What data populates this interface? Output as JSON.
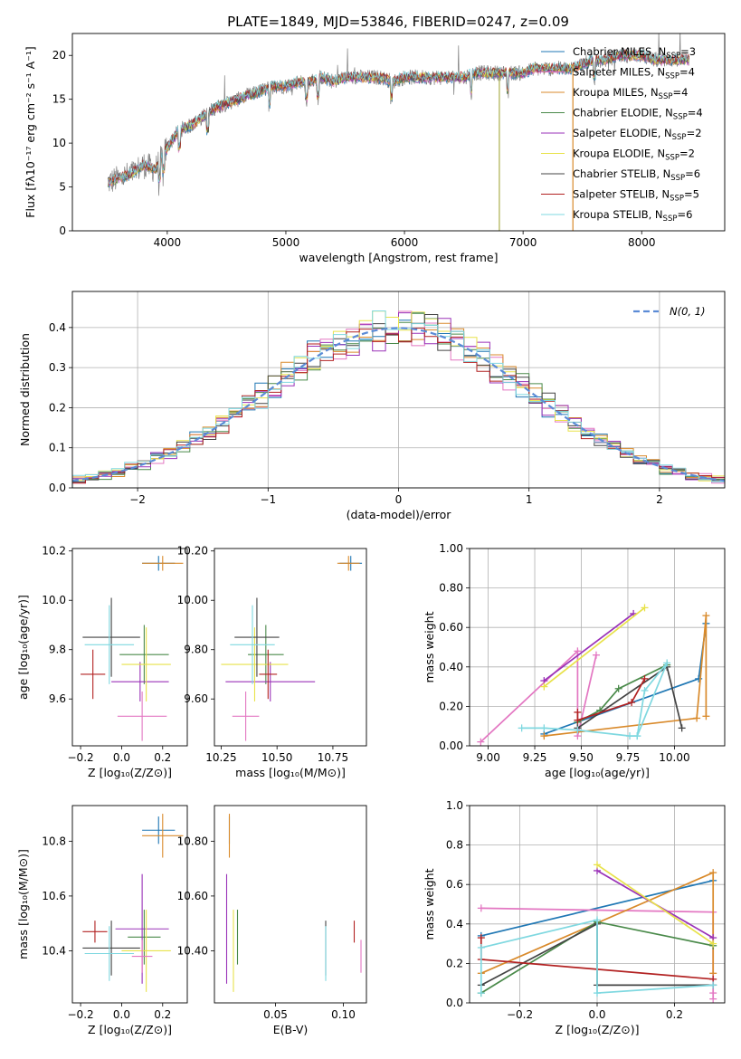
{
  "chart_data": [
    {
      "type": "line",
      "title": "PLATE=1849, MJD=53846, FIBERID=0247, z=0.09",
      "xlabel": "wavelength [Angstrom, rest frame]",
      "ylabel": "Flux [fλ10⁻¹⁷ erg cm⁻² s⁻¹ A⁻¹]",
      "xlim": [
        3200,
        8700
      ],
      "ylim": [
        0,
        22.5
      ],
      "xticks": [
        4000,
        5000,
        6000,
        7000,
        8000
      ],
      "yticks": [
        0,
        5,
        10,
        15,
        20
      ],
      "grid": false,
      "legend_position": "top-right",
      "x": [
        3500,
        3600,
        3700,
        3800,
        3900,
        4000,
        4100,
        4200,
        4300,
        4400,
        4500,
        4600,
        4700,
        4800,
        4900,
        5000,
        5100,
        5200,
        5300,
        5400,
        5500,
        5600,
        5700,
        5800,
        5900,
        6000,
        6100,
        6200,
        6300,
        6400,
        6500,
        6600,
        6700,
        6800,
        6900,
        7000,
        7100,
        7200,
        7300,
        7400,
        7500,
        7600,
        7700,
        7800,
        7900,
        8000,
        8100,
        8200,
        8300,
        8400
      ],
      "series": [
        {
          "name": "Chabrier MILES, N_SSP=3",
          "legend_main": "Chabrier MILES, N",
          "legend_sub": "SSP",
          "legend_tail": "=3",
          "color": "#1f77b4"
        },
        {
          "name": "Salpeter MILES, N_SSP=4",
          "legend_main": "Salpeter MILES, N",
          "legend_sub": "SSP",
          "legend_tail": "=4",
          "color": "#e377c2"
        },
        {
          "name": "Kroupa MILES, N_SSP=4",
          "legend_main": "Kroupa MILES, N",
          "legend_sub": "SSP",
          "legend_tail": "=4",
          "color": "#d98a2b"
        },
        {
          "name": "Chabrier ELODIE, N_SSP=4",
          "legend_main": "Chabrier ELODIE, N",
          "legend_sub": "SSP",
          "legend_tail": "=4",
          "color": "#4a8a4a"
        },
        {
          "name": "Salpeter ELODIE, N_SSP=2",
          "legend_main": "Salpeter ELODIE, N",
          "legend_sub": "SSP",
          "legend_tail": "=2",
          "color": "#9a32b8"
        },
        {
          "name": "Kroupa ELODIE, N_SSP=2",
          "legend_main": "Kroupa ELODIE, N",
          "legend_sub": "SSP",
          "legend_tail": "=2",
          "color": "#e8e24a"
        },
        {
          "name": "Chabrier STELIB, N_SSP=6",
          "legend_main": "Chabrier STELIB, N",
          "legend_sub": "SSP",
          "legend_tail": "=6",
          "color": "#444444"
        },
        {
          "name": "Salpeter STELIB, N_SSP=5",
          "legend_main": "Salpeter STELIB, N",
          "legend_sub": "SSP",
          "legend_tail": "=5",
          "color": "#b22222"
        },
        {
          "name": "Kroupa STELIB, N_SSP=6",
          "legend_main": "Kroupa STELIB, N",
          "legend_sub": "SSP",
          "legend_tail": "=6",
          "color": "#7fd8e0"
        }
      ],
      "observed_flux": [
        5.5,
        6.0,
        6.5,
        7.5,
        7.0,
        9.5,
        11.5,
        12.0,
        13.0,
        14.0,
        14.5,
        15.0,
        15.5,
        16.0,
        16.5,
        16.5,
        17.0,
        17.0,
        17.5,
        17.0,
        17.5,
        17.5,
        17.5,
        17.5,
        17.0,
        17.5,
        17.5,
        17.5,
        17.5,
        17.5,
        17.5,
        18.0,
        18.0,
        18.0,
        18.0,
        18.0,
        18.5,
        18.5,
        18.5,
        18.5,
        19.0,
        19.5,
        19.5,
        20.0,
        20.0,
        20.0,
        19.5,
        19.5,
        19.5,
        19.5
      ]
    },
    {
      "type": "line",
      "xlabel": "(data-model)/error",
      "ylabel": "Normed distribution",
      "xlim": [
        -2.5,
        2.5
      ],
      "ylim": [
        0,
        0.49
      ],
      "xticks": [
        -2,
        -1,
        0,
        1,
        2
      ],
      "yticks": [
        0.0,
        0.1,
        0.2,
        0.3,
        0.4
      ],
      "grid": true,
      "legend_position": "top-right",
      "legend": "N(0, 1)",
      "bin_width": 0.1,
      "histogram_heights_approx": [
        0.02,
        0.03,
        0.04,
        0.05,
        0.07,
        0.09,
        0.11,
        0.13,
        0.16,
        0.19,
        0.22,
        0.25,
        0.28,
        0.31,
        0.34,
        0.36,
        0.38,
        0.4,
        0.4,
        0.4,
        0.4,
        0.4,
        0.39,
        0.38,
        0.36,
        0.33,
        0.3,
        0.27,
        0.24,
        0.21,
        0.18,
        0.15,
        0.12,
        0.1,
        0.08,
        0.06,
        0.05,
        0.04,
        0.03,
        0.03
      ]
    },
    {
      "type": "scatter",
      "xlabel": "Z [log₁₀(Z/Z⊙)]",
      "ylabel": "age  [log₁₀(age/yr)]",
      "xlim": [
        -0.24,
        0.32
      ],
      "ylim": [
        9.41,
        10.21
      ],
      "xticks": [
        -0.2,
        0.0,
        0.2
      ],
      "yticks": [
        9.6,
        9.8,
        10.0,
        10.2
      ],
      "grid": false,
      "points": [
        {
          "series": "Chabrier MILES",
          "x": 0.18,
          "y": 10.15,
          "xerr": 0.08,
          "yerr": 0.03
        },
        {
          "series": "Kroupa MILES",
          "x": 0.2,
          "y": 10.15,
          "xerr": 0.1,
          "yerr": 0.03
        },
        {
          "series": "Chabrier ELODIE",
          "x": 0.11,
          "y": 9.78,
          "xerr": 0.12,
          "yerr": 0.12
        },
        {
          "series": "Salpeter ELODIE",
          "x": 0.09,
          "y": 9.67,
          "xerr": 0.14,
          "yerr": 0.08
        },
        {
          "series": "Kroupa ELODIE",
          "x": 0.12,
          "y": 9.74,
          "xerr": 0.12,
          "yerr": 0.15
        },
        {
          "series": "Chabrier STELIB",
          "x": -0.05,
          "y": 9.85,
          "xerr": 0.14,
          "yerr": 0.16
        },
        {
          "series": "Salpeter STELIB",
          "x": -0.14,
          "y": 9.7,
          "xerr": 0.06,
          "yerr": 0.1
        },
        {
          "series": "Kroupa STELIB",
          "x": -0.06,
          "y": 9.82,
          "xerr": 0.12,
          "yerr": 0.16
        },
        {
          "series": "Salpeter MILES",
          "x": 0.1,
          "y": 9.53,
          "xerr": 0.12,
          "yerr": 0.1
        }
      ]
    },
    {
      "type": "scatter",
      "xlabel": "mass [log₁₀(M/M⊙)]",
      "xlim": [
        10.22,
        10.9
      ],
      "ylim": [
        9.41,
        10.21
      ],
      "xticks": [
        10.25,
        10.5,
        10.75
      ],
      "yticks": [
        9.6,
        9.8,
        10.0,
        10.2
      ],
      "grid": false,
      "points": [
        {
          "series": "Chabrier MILES",
          "x": 10.83,
          "y": 10.15,
          "xerr": 0.05,
          "yerr": 0.03
        },
        {
          "series": "Kroupa MILES",
          "x": 10.82,
          "y": 10.15,
          "xerr": 0.05,
          "yerr": 0.03
        },
        {
          "series": "Chabrier ELODIE",
          "x": 10.45,
          "y": 9.78,
          "xerr": 0.08,
          "yerr": 0.12
        },
        {
          "series": "Salpeter ELODIE",
          "x": 10.47,
          "y": 9.67,
          "xerr": 0.2,
          "yerr": 0.08
        },
        {
          "series": "Kroupa ELODIE",
          "x": 10.4,
          "y": 9.74,
          "xerr": 0.15,
          "yerr": 0.15
        },
        {
          "series": "Chabrier STELIB",
          "x": 10.41,
          "y": 9.85,
          "xerr": 0.1,
          "yerr": 0.16
        },
        {
          "series": "Salpeter STELIB",
          "x": 10.46,
          "y": 9.7,
          "xerr": 0.04,
          "yerr": 0.1
        },
        {
          "series": "Kroupa STELIB",
          "x": 10.39,
          "y": 9.82,
          "xerr": 0.1,
          "yerr": 0.16
        },
        {
          "series": "Salpeter MILES",
          "x": 10.36,
          "y": 9.53,
          "xerr": 0.06,
          "yerr": 0.1
        }
      ]
    },
    {
      "type": "line",
      "xlabel": "age  [log₁₀(age/yr)]",
      "ylabel": "mass weight",
      "xlim": [
        8.9,
        10.27
      ],
      "ylim": [
        0,
        1
      ],
      "xticks": [
        9.0,
        9.25,
        9.5,
        9.75,
        10.0
      ],
      "yticks": [
        0.0,
        0.2,
        0.4,
        0.6,
        0.8,
        1.0
      ],
      "grid": true,
      "series": [
        {
          "name": "Chabrier MILES",
          "x": [
            9.3,
            10.13,
            10.17
          ],
          "y": [
            0.06,
            0.34,
            0.62
          ]
        },
        {
          "name": "Salpeter MILES",
          "x": [
            8.96,
            9.48,
            9.48,
            9.58
          ],
          "y": [
            0.02,
            0.48,
            0.05,
            0.46
          ]
        },
        {
          "name": "Kroupa MILES",
          "x": [
            9.3,
            10.12,
            10.17,
            10.17
          ],
          "y": [
            0.05,
            0.14,
            0.66,
            0.15
          ]
        },
        {
          "name": "Chabrier ELODIE",
          "x": [
            9.48,
            9.6,
            9.7,
            9.96
          ],
          "y": [
            0.12,
            0.18,
            0.29,
            0.41
          ]
        },
        {
          "name": "Salpeter ELODIE",
          "x": [
            9.3,
            9.78
          ],
          "y": [
            0.33,
            0.67
          ]
        },
        {
          "name": "Kroupa ELODIE",
          "x": [
            9.3,
            9.84
          ],
          "y": [
            0.3,
            0.7
          ]
        },
        {
          "name": "Chabrier STELIB",
          "x": [
            9.48,
            9.96,
            10.04
          ],
          "y": [
            0.09,
            0.4,
            0.09
          ]
        },
        {
          "name": "Salpeter STELIB",
          "x": [
            9.48,
            9.48,
            9.77,
            9.84
          ],
          "y": [
            0.17,
            0.13,
            0.22,
            0.34
          ]
        },
        {
          "name": "Kroupa STELIB",
          "x": [
            9.18,
            9.3,
            9.48,
            9.76,
            9.8,
            9.96,
            9.84,
            9.8
          ],
          "y": [
            0.09,
            0.09,
            0.08,
            0.05,
            0.05,
            0.42,
            0.28,
            0.05
          ]
        }
      ]
    },
    {
      "type": "scatter",
      "xlabel": "Z [log₁₀(Z/Z⊙)]",
      "ylabel": "mass [log₁₀(M/M⊙)]",
      "xlim": [
        -0.24,
        0.32
      ],
      "ylim": [
        10.21,
        10.93
      ],
      "xticks": [
        -0.2,
        0.0,
        0.2
      ],
      "yticks": [
        10.4,
        10.6,
        10.8
      ],
      "grid": false,
      "points": [
        {
          "series": "Chabrier MILES",
          "x": 0.18,
          "y": 10.84,
          "xerr": 0.08,
          "yerr": 0.05
        },
        {
          "series": "Kroupa MILES",
          "x": 0.2,
          "y": 10.82,
          "xerr": 0.1,
          "yerr": 0.08
        },
        {
          "series": "Chabrier ELODIE",
          "x": 0.11,
          "y": 10.45,
          "xerr": 0.08,
          "yerr": 0.1
        },
        {
          "series": "Salpeter ELODIE",
          "x": 0.1,
          "y": 10.48,
          "xerr": 0.13,
          "yerr": 0.2
        },
        {
          "series": "Kroupa ELODIE",
          "x": 0.12,
          "y": 10.4,
          "xerr": 0.12,
          "yerr": 0.15
        },
        {
          "series": "Chabrier STELIB",
          "x": -0.05,
          "y": 10.41,
          "xerr": 0.14,
          "yerr": 0.1
        },
        {
          "series": "Salpeter STELIB",
          "x": -0.13,
          "y": 10.47,
          "xerr": 0.06,
          "yerr": 0.04
        },
        {
          "series": "Kroupa STELIB",
          "x": -0.06,
          "y": 10.39,
          "xerr": 0.12,
          "yerr": 0.1
        },
        {
          "series": "Salpeter MILES",
          "x": 0.1,
          "y": 10.38,
          "xerr": 0.05,
          "yerr": 0.06
        }
      ]
    },
    {
      "type": "scatter",
      "xlabel": "E(B-V)",
      "xlim": [
        0.005,
        0.117
      ],
      "ylim": [
        10.21,
        10.93
      ],
      "xticks": [
        0.05,
        0.1
      ],
      "yticks": [
        10.4,
        10.6,
        10.8
      ],
      "grid": false,
      "points": [
        {
          "series": "Chabrier MILES",
          "x": 0.016,
          "y": 10.84,
          "yerr": 0.05
        },
        {
          "series": "Kroupa MILES",
          "x": 0.016,
          "y": 10.82,
          "yerr": 0.08
        },
        {
          "series": "Chabrier ELODIE",
          "x": 0.022,
          "y": 10.45,
          "yerr": 0.1
        },
        {
          "series": "Salpeter ELODIE",
          "x": 0.014,
          "y": 10.48,
          "yerr": 0.2
        },
        {
          "series": "Kroupa ELODIE",
          "x": 0.019,
          "y": 10.4,
          "yerr": 0.15
        },
        {
          "series": "Chabrier STELIB",
          "x": 0.087,
          "y": 10.41,
          "yerr": 0.1
        },
        {
          "series": "Salpeter STELIB",
          "x": 0.108,
          "y": 10.47,
          "yerr": 0.04
        },
        {
          "series": "Kroupa STELIB",
          "x": 0.087,
          "y": 10.39,
          "yerr": 0.1
        },
        {
          "series": "Salpeter MILES",
          "x": 0.113,
          "y": 10.38,
          "yerr": 0.06
        }
      ]
    },
    {
      "type": "line",
      "xlabel": "Z [log₁₀(Z/Z⊙)]",
      "ylabel": "mass weight",
      "xlim": [
        -0.33,
        0.33
      ],
      "ylim": [
        0,
        1
      ],
      "xticks": [
        -0.2,
        0.0,
        0.2
      ],
      "yticks": [
        0.0,
        0.2,
        0.4,
        0.6,
        0.8,
        1.0
      ],
      "grid": true,
      "series": [
        {
          "name": "Chabrier MILES",
          "x": [
            -0.3,
            0.3
          ],
          "y": [
            0.34,
            0.62
          ]
        },
        {
          "name": "Salpeter MILES",
          "x": [
            -0.3,
            0.3,
            0.3,
            0.3
          ],
          "y": [
            0.48,
            0.46,
            0.02,
            0.05
          ]
        },
        {
          "name": "Kroupa MILES",
          "x": [
            -0.3,
            0.3,
            0.3
          ],
          "y": [
            0.15,
            0.66,
            0.15
          ]
        },
        {
          "name": "Chabrier ELODIE",
          "x": [
            -0.3,
            0.0,
            0.3
          ],
          "y": [
            0.05,
            0.41,
            0.29
          ]
        },
        {
          "name": "Salpeter ELODIE",
          "x": [
            0.0,
            0.3
          ],
          "y": [
            0.67,
            0.33
          ]
        },
        {
          "name": "Kroupa ELODIE",
          "x": [
            0.0,
            0.3
          ],
          "y": [
            0.7,
            0.3
          ]
        },
        {
          "name": "Chabrier STELIB",
          "x": [
            -0.3,
            0.0,
            0.0,
            0.3
          ],
          "y": [
            0.09,
            0.4,
            0.09,
            0.09
          ]
        },
        {
          "name": "Salpeter STELIB",
          "x": [
            -0.3,
            -0.3,
            0.3
          ],
          "y": [
            0.33,
            0.22,
            0.12
          ]
        },
        {
          "name": "Kroupa STELIB",
          "x": [
            -0.3,
            -0.3,
            0.0,
            0.0,
            0.3
          ],
          "y": [
            0.05,
            0.28,
            0.42,
            0.05,
            0.09
          ]
        }
      ]
    }
  ]
}
